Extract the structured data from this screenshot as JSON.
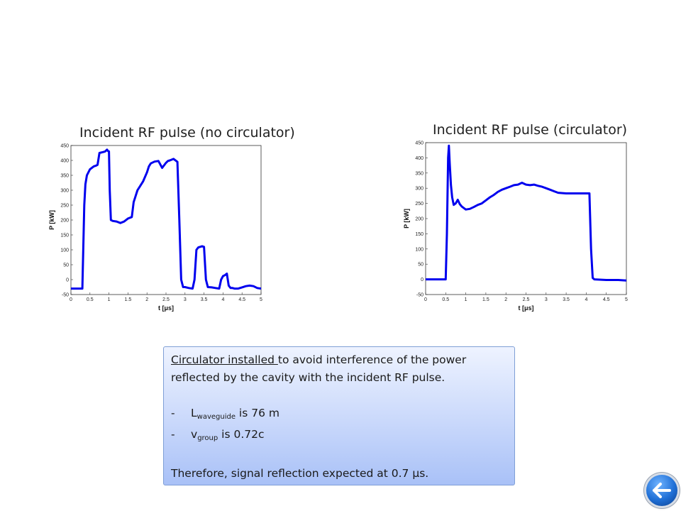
{
  "chart_data": [
    {
      "type": "line",
      "title": "Incident RF pulse (no circulator)",
      "xlabel": "t [μs]",
      "ylabel": "P [kW]",
      "xlim": [
        0,
        5
      ],
      "ylim": [
        -50,
        450
      ],
      "xticks": [
        "0",
        "0.5",
        "1",
        "1.5",
        "2",
        "2.5",
        "3",
        "3.5",
        "4",
        "4.5",
        "5"
      ],
      "yticks": [
        "-50",
        "0",
        "50",
        "100",
        "150",
        "200",
        "250",
        "300",
        "350",
        "400",
        "450"
      ],
      "line_color": "#0000ee",
      "grid": false,
      "series": [
        {
          "x": [
            0,
            0.25,
            0.3,
            0.35,
            0.38,
            0.42,
            0.5,
            0.6,
            0.65,
            0.7,
            0.75,
            0.85,
            0.9,
            0.95,
            0.97,
            1.0,
            1.02,
            1.05,
            1.1,
            1.2,
            1.3,
            1.4,
            1.5,
            1.6,
            1.65,
            1.7,
            1.75,
            1.8,
            1.9,
            2.0,
            2.05,
            2.1,
            2.2,
            2.3,
            2.4,
            2.5,
            2.55,
            2.6,
            2.7,
            2.8,
            2.85,
            2.9,
            2.95,
            3.0,
            3.1,
            3.2,
            3.25,
            3.3,
            3.35,
            3.4,
            3.45,
            3.5,
            3.55,
            3.6,
            3.7,
            3.8,
            3.9,
            3.95,
            4.0,
            4.05,
            4.1,
            4.15,
            4.2,
            4.25,
            4.3,
            4.4,
            4.5,
            4.6,
            4.7,
            4.8,
            4.9,
            5.0
          ],
          "y": [
            -30,
            -30,
            -30,
            250,
            320,
            350,
            370,
            380,
            382,
            385,
            425,
            428,
            430,
            436,
            432,
            430,
            300,
            200,
            197,
            195,
            190,
            195,
            205,
            210,
            260,
            280,
            300,
            310,
            330,
            360,
            380,
            390,
            396,
            398,
            375,
            392,
            398,
            400,
            405,
            395,
            200,
            0,
            -25,
            -25,
            -28,
            -30,
            0,
            100,
            108,
            110,
            112,
            110,
            0,
            -25,
            -26,
            -28,
            -30,
            0,
            12,
            15,
            20,
            -20,
            -28,
            -28,
            -30,
            -30,
            -26,
            -22,
            -20,
            -22,
            -28,
            -30
          ]
        }
      ]
    },
    {
      "type": "line",
      "title": "Incident RF pulse (circulator)",
      "xlabel": "t [μs]",
      "ylabel": "P [kW]",
      "xlim": [
        0,
        5
      ],
      "ylim": [
        -50,
        450
      ],
      "xticks": [
        "0",
        "0.5",
        "1",
        "1.5",
        "2",
        "2.5",
        "3",
        "3.5",
        "4",
        "4.5",
        "5"
      ],
      "yticks": [
        "-50",
        "0",
        "50",
        "100",
        "150",
        "200",
        "250",
        "300",
        "350",
        "400",
        "450"
      ],
      "line_color": "#0000ee",
      "grid": false,
      "series": [
        {
          "x": [
            0,
            0.45,
            0.5,
            0.53,
            0.56,
            0.58,
            0.6,
            0.63,
            0.66,
            0.7,
            0.75,
            0.8,
            0.85,
            0.9,
            1.0,
            1.1,
            1.2,
            1.3,
            1.4,
            1.5,
            1.6,
            1.7,
            1.8,
            1.9,
            2.0,
            2.1,
            2.2,
            2.3,
            2.4,
            2.5,
            2.6,
            2.7,
            2.8,
            2.9,
            3.0,
            3.1,
            3.2,
            3.3,
            3.5,
            3.7,
            3.9,
            4.0,
            4.08,
            4.12,
            4.16,
            4.2,
            4.5,
            4.8,
            5.0
          ],
          "y": [
            0,
            0,
            0,
            150,
            400,
            440,
            380,
            310,
            270,
            245,
            250,
            262,
            248,
            240,
            230,
            232,
            238,
            245,
            250,
            260,
            270,
            278,
            288,
            295,
            300,
            305,
            310,
            312,
            318,
            312,
            310,
            312,
            308,
            305,
            300,
            295,
            290,
            285,
            283,
            283,
            283,
            283,
            283,
            100,
            5,
            0,
            -2,
            -2,
            -4
          ]
        }
      ]
    }
  ],
  "note": {
    "line1_underlined": "Circulator installed ",
    "line1_rest": "to avoid interference  of the power",
    "line2": "reflected by the cavity with the incident RF pulse.",
    "bullet_dash": "-",
    "bullet1_main": "L",
    "bullet1_sub": "waveguide",
    "bullet1_rest": " is 76 m",
    "bullet2_main": "v",
    "bullet2_sub": "group",
    "bullet2_rest": " is 0.72c",
    "conclusion": "Therefore,   signal reflection expected at 0.7 µs."
  },
  "nav": {
    "back_icon": "arrow-left-icon"
  }
}
